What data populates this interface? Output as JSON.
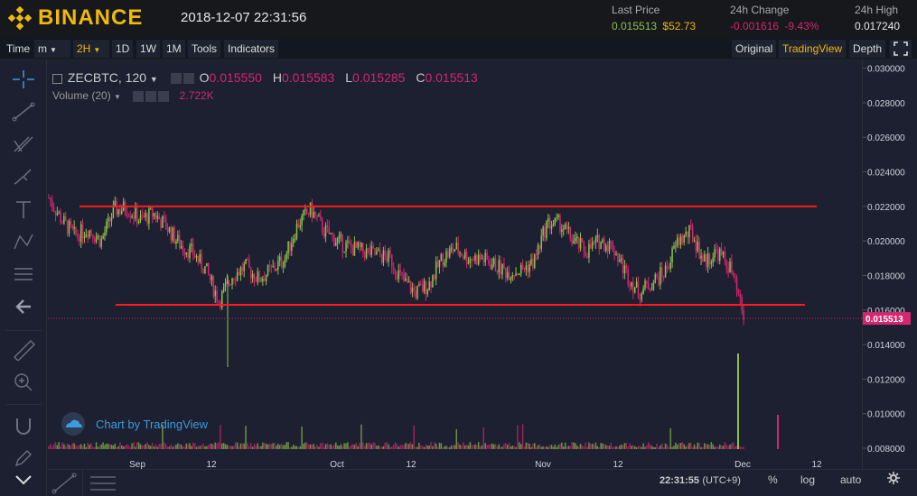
{
  "header": {
    "brand": "BINANCE",
    "datetime": "2018-12-07 22:31:56",
    "last_price": {
      "label": "Last Price",
      "value_btc": "0.015513",
      "value_usd": "$52.73"
    },
    "change_24h": {
      "label": "24h Change",
      "value": "-0.001616",
      "percent": "-9.43%"
    },
    "high_24h": {
      "label": "24h High",
      "value": "0.017240"
    }
  },
  "toolbar": {
    "time": "Time",
    "minute": "m",
    "interval_2h": "2H",
    "interval_1d": "1D",
    "interval_1w": "1W",
    "interval_1m": "1M",
    "tools": "Tools",
    "indicators": "Indicators",
    "original": "Original",
    "tradingview": "TradingView",
    "depth": "Depth"
  },
  "legend": {
    "symbol": "ZECBTC, 120",
    "o_label": "O",
    "o_value": "0.015550",
    "h_label": "H",
    "h_value": "0.015583",
    "l_label": "L",
    "l_value": "0.015285",
    "c_label": "C",
    "c_value": "0.015513",
    "volume_label": "Volume (20)",
    "volume_value": "2.722K"
  },
  "watermark": "Chart by TradingView",
  "bottom": {
    "time": "22:31:55",
    "tz": "(UTC+9)",
    "percent": "%",
    "log": "log",
    "auto": "auto"
  },
  "colors": {
    "accent": "#f0b90b",
    "up": "#8bc34a",
    "down": "#d5266f",
    "line": "#ff1a1a"
  },
  "chart_data": {
    "type": "candlestick",
    "symbol": "ZECBTC",
    "interval": "120",
    "y_ticks": [
      "0.030000",
      "0.028000",
      "0.026000",
      "0.024000",
      "0.022000",
      "0.020000",
      "0.018000",
      "0.016000",
      "0.014000",
      "0.012000",
      "0.010000",
      "0.008000"
    ],
    "ylim": [
      0.0068,
      0.0305
    ],
    "x_ticks": [
      "Sep",
      "12",
      "Oct",
      "12",
      "Nov",
      "12",
      "Dec",
      "12"
    ],
    "current_price": "0.015513",
    "price_path": [
      0.0225,
      0.0212,
      0.0203,
      0.0207,
      0.02,
      0.0218,
      0.0219,
      0.0212,
      0.0216,
      0.0208,
      0.0198,
      0.0193,
      0.0183,
      0.0165,
      0.018,
      0.0185,
      0.0178,
      0.0183,
      0.019,
      0.021,
      0.0218,
      0.0206,
      0.02,
      0.0196,
      0.0194,
      0.0192,
      0.019,
      0.0177,
      0.017,
      0.0175,
      0.019,
      0.0196,
      0.019,
      0.019,
      0.0186,
      0.0182,
      0.0183,
      0.0188,
      0.021,
      0.021,
      0.02,
      0.0194,
      0.02,
      0.0197,
      0.0182,
      0.017,
      0.0176,
      0.0182,
      0.02,
      0.0205,
      0.0188,
      0.0194,
      0.0184,
      0.0156
    ],
    "annotations": [
      {
        "type": "horizontal-line",
        "y": 0.022
      },
      {
        "type": "horizontal-line",
        "y": 0.0163
      }
    ]
  }
}
